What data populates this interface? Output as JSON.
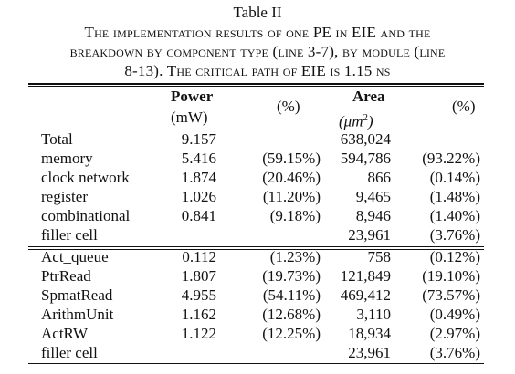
{
  "caption": {
    "label": "Table II",
    "line1": "The implementation results of one PE in EIE and the",
    "line2": "breakdown by component type (line 3-7), by module (line",
    "line3": "8-13). The critical path of EIE is 1.15 ns"
  },
  "table": {
    "headers": {
      "power": "Power",
      "power_unit": "(mW)",
      "power_pct": "(%)",
      "area": "Area",
      "area_unit_prefix": "(μm",
      "area_unit_exp": "2",
      "area_unit_suffix": ")",
      "area_pct": "(%)"
    },
    "rows": [
      {
        "name": "Total",
        "power": "9.157",
        "power_pct": "",
        "area": "638,024",
        "area_pct": ""
      },
      {
        "name": "memory",
        "power": "5.416",
        "power_pct": "(59.15%)",
        "area": "594,786",
        "area_pct": "(93.22%)"
      },
      {
        "name": "clock network",
        "power": "1.874",
        "power_pct": "(20.46%)",
        "area": "866",
        "area_pct": "(0.14%)"
      },
      {
        "name": "register",
        "power": "1.026",
        "power_pct": "(11.20%)",
        "area": "9,465",
        "area_pct": "(1.48%)"
      },
      {
        "name": "combinational",
        "power": "0.841",
        "power_pct": "(9.18%)",
        "area": "8,946",
        "area_pct": "(1.40%)"
      },
      {
        "name": "filler cell",
        "power": "",
        "power_pct": "",
        "area": "23,961",
        "area_pct": "(3.76%)"
      },
      {
        "name": "Act_queue",
        "power": "0.112",
        "power_pct": "(1.23%)",
        "area": "758",
        "area_pct": "(0.12%)"
      },
      {
        "name": "PtrRead",
        "power": "1.807",
        "power_pct": "(19.73%)",
        "area": "121,849",
        "area_pct": "(19.10%)"
      },
      {
        "name": "SpmatRead",
        "power": "4.955",
        "power_pct": "(54.11%)",
        "area": "469,412",
        "area_pct": "(73.57%)"
      },
      {
        "name": "ArithmUnit",
        "power": "1.162",
        "power_pct": "(12.68%)",
        "area": "3,110",
        "area_pct": "(0.49%)"
      },
      {
        "name": "ActRW",
        "power": "1.122",
        "power_pct": "(12.25%)",
        "area": "18,934",
        "area_pct": "(2.97%)"
      },
      {
        "name": "filler cell",
        "power": "",
        "power_pct": "",
        "area": "23,961",
        "area_pct": "(3.76%)"
      }
    ]
  }
}
